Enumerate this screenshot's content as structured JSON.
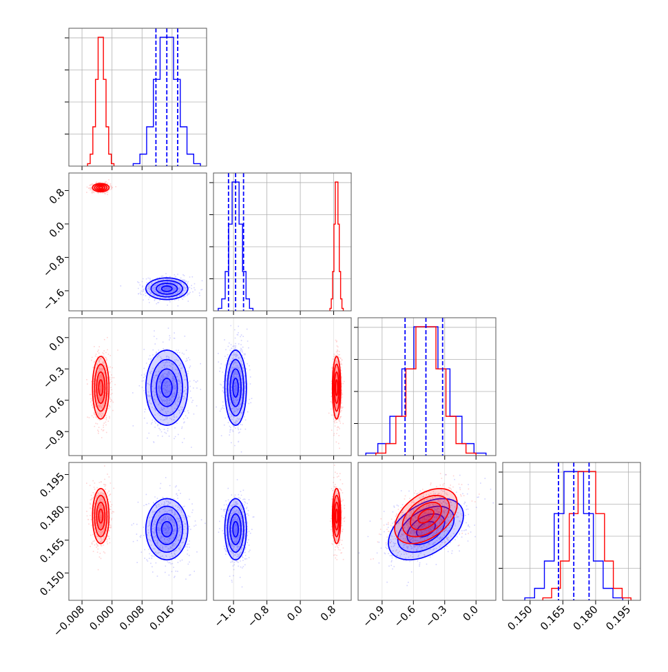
{
  "chart_data": {
    "type": "corner",
    "grid": true,
    "legend": "none",
    "colors": {
      "series_a": "#0000ff",
      "series_b": "#ff0000",
      "grid": "#b0b0b0"
    },
    "parameters": [
      {
        "xlim": [
          -0.0115,
          0.0252
        ],
        "ticks": [
          "-0.008",
          "0.000",
          "0.008",
          "0.016"
        ],
        "tick_values": [
          -0.008,
          0.0,
          0.008,
          0.016
        ]
      },
      {
        "xlim": [
          -2.08,
          1.22
        ],
        "ticks": [
          "-1.6",
          "-0.8",
          "0.0",
          "0.8"
        ],
        "tick_values": [
          -1.6,
          -0.8,
          0.0,
          0.8
        ]
      },
      {
        "xlim": [
          -1.13,
          0.19
        ],
        "ticks": [
          "-0.9",
          "-0.6",
          "-0.3",
          "0.0"
        ],
        "tick_values": [
          -0.9,
          -0.6,
          -0.3,
          0.0
        ]
      },
      {
        "xlim": [
          0.1375,
          0.2005
        ],
        "ticks": [
          "0.150",
          "0.165",
          "0.180",
          "0.195"
        ],
        "tick_values": [
          0.15,
          0.165,
          0.18,
          0.195
        ]
      }
    ],
    "row_ticks": [
      null,
      [
        "0.8",
        "0.0",
        "-0.8",
        "-1.6"
      ],
      [
        "0.0",
        "-0.3",
        "-0.6",
        "-0.9"
      ],
      [
        "0.195",
        "0.180",
        "0.165",
        "0.150"
      ]
    ],
    "series": [
      {
        "name": "",
        "color": "#0000ff",
        "means": [
          0.0146,
          -1.55,
          -0.48,
          0.17
        ],
        "stds": [
          0.0028,
          0.13,
          0.18,
          0.007
        ],
        "quantiles": [
          [
            0.0117,
            0.0146,
            0.0175
          ],
          [
            -1.72,
            -1.55,
            -1.36
          ],
          [
            -0.68,
            -0.48,
            -0.32
          ],
          [
            0.163,
            0.17,
            0.177
          ]
        ],
        "correlations": {
          "2-3": 0.45
        }
      },
      {
        "name": "",
        "color": "#ff0000",
        "means": [
          -0.003,
          0.87,
          -0.48,
          0.176
        ],
        "stds": [
          0.0011,
          0.05,
          0.15,
          0.0063
        ],
        "quantiles": null,
        "correlations": {
          "2-3": 0.45
        }
      }
    ]
  }
}
